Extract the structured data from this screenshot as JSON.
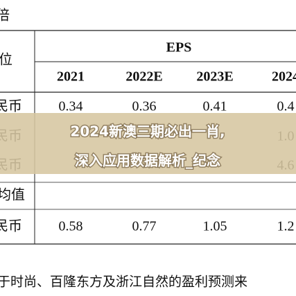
{
  "header": {
    "title": "倍",
    "unit": "位",
    "group": "EPS"
  },
  "table": {
    "columns": [
      "2021",
      "2022E",
      "2023E",
      "2024"
    ],
    "rows": [
      {
        "label": "民币",
        "cells": [
          "0.34",
          "0.36",
          "0.41",
          "0.4"
        ]
      },
      {
        "label": "民币",
        "cells": [
          null,
          null,
          null,
          "1.0"
        ]
      },
      {
        "label": "民币",
        "cells": [
          null,
          null,
          null,
          "4.6"
        ]
      }
    ],
    "section": "均值",
    "summary": {
      "label": "民币",
      "cells": [
        "0.58",
        "0.77",
        "1.05",
        "1.2"
      ]
    }
  },
  "banner": {
    "line1": "2024新澳三期必出一肖,",
    "line2": "深入应用数据解析_纪念"
  },
  "footer": "于时尚、百隆东方及浙江自然的盈利预测来"
}
